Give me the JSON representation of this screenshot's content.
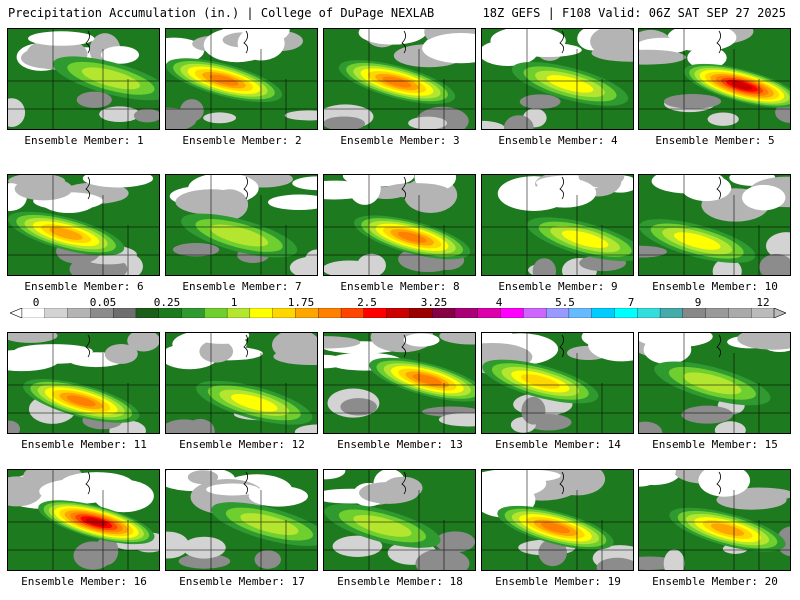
{
  "header": {
    "left": "Precipitation Accumulation (in.) | College of DuPage NEXLAB",
    "right": "18Z GEFS | F108 Valid: 06Z SAT SEP 27 2025"
  },
  "members": [
    {
      "label": "Ensemble Member: 1",
      "max_level": 9
    },
    {
      "label": "Ensemble Member: 2",
      "max_level": 13
    },
    {
      "label": "Ensemble Member: 3",
      "max_level": 13
    },
    {
      "label": "Ensemble Member: 4",
      "max_level": 10
    },
    {
      "label": "Ensemble Member: 5",
      "max_level": 16
    },
    {
      "label": "Ensemble Member: 6",
      "max_level": 12
    },
    {
      "label": "Ensemble Member: 7",
      "max_level": 9
    },
    {
      "label": "Ensemble Member: 8",
      "max_level": 13
    },
    {
      "label": "Ensemble Member: 9",
      "max_level": 10
    },
    {
      "label": "Ensemble Member: 10",
      "max_level": 10
    },
    {
      "label": "Ensemble Member: 11",
      "max_level": 13
    },
    {
      "label": "Ensemble Member: 12",
      "max_level": 10
    },
    {
      "label": "Ensemble Member: 13",
      "max_level": 13
    },
    {
      "label": "Ensemble Member: 14",
      "max_level": 11
    },
    {
      "label": "Ensemble Member: 15",
      "max_level": 9
    },
    {
      "label": "Ensemble Member: 16",
      "max_level": 16
    },
    {
      "label": "Ensemble Member: 17",
      "max_level": 9
    },
    {
      "label": "Ensemble Member: 18",
      "max_level": 9
    },
    {
      "label": "Ensemble Member: 19",
      "max_level": 13
    },
    {
      "label": "Ensemble Member: 20",
      "max_level": 12
    }
  ],
  "colorbar": {
    "ticks": [
      "0",
      "0.05",
      "0.25",
      "1",
      "1.75",
      "2.5",
      "3.25",
      "4",
      "5.5",
      "7",
      "9",
      "12"
    ],
    "colors": [
      "#ffffff",
      "#d3d3d3",
      "#b4b4b4",
      "#8c8c8c",
      "#6e6e6e",
      "#1a5e1a",
      "#1e7a1e",
      "#2f9a2f",
      "#6fcf2f",
      "#b4e62f",
      "#ffff00",
      "#ffd700",
      "#ffa500",
      "#ff7f00",
      "#ff4500",
      "#ff0000",
      "#cc0000",
      "#990000",
      "#880044",
      "#aa0077",
      "#dd00aa",
      "#ff00ff",
      "#cc66ff",
      "#9999ff",
      "#66bbff",
      "#00ccff",
      "#00ffff",
      "#33dddd",
      "#44aaaa",
      "#888888",
      "#999999",
      "#aaaaaa",
      "#bbbbbb"
    ]
  }
}
